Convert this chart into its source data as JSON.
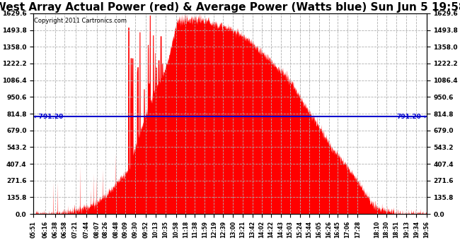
{
  "title": "West Array Actual Power (red) & Average Power (Watts blue) Sun Jun 5 19:58",
  "copyright": "Copyright 2011 Cartronics.com",
  "average_power": 791.2,
  "y_max": 1629.6,
  "y_min": 0.0,
  "y_ticks": [
    0.0,
    135.8,
    271.6,
    407.4,
    543.2,
    679.0,
    814.8,
    950.6,
    1086.4,
    1222.2,
    1358.0,
    1493.8,
    1629.6
  ],
  "x_tick_labels": [
    "05:51",
    "06:16",
    "06:38",
    "06:58",
    "07:21",
    "07:44",
    "08:07",
    "08:26",
    "08:48",
    "09:09",
    "09:30",
    "09:52",
    "10:13",
    "10:35",
    "10:58",
    "11:18",
    "11:38",
    "11:59",
    "12:19",
    "12:39",
    "13:00",
    "13:21",
    "13:42",
    "14:02",
    "14:22",
    "14:43",
    "15:03",
    "15:24",
    "15:44",
    "16:05",
    "16:26",
    "16:45",
    "17:06",
    "17:28",
    "18:10",
    "18:30",
    "18:51",
    "19:13",
    "19:34",
    "19:56"
  ],
  "background_color": "#ffffff",
  "grid_color": "#b0b0b0",
  "red_color": "#ff0000",
  "blue_color": "#0000cc",
  "title_fontsize": 11,
  "avg_label_left": "←791.20",
  "avg_label_right": "791.20→"
}
